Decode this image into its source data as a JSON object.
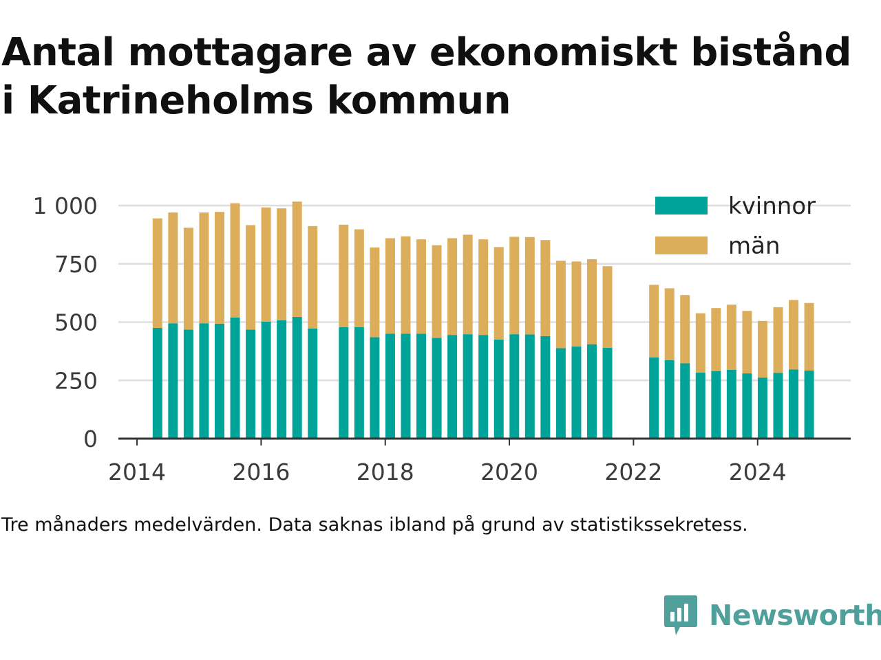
{
  "title": {
    "line1": "Antal mottagare av ekonomiskt bistånd",
    "line2": "i Katrineholms kommun"
  },
  "note": "Tre månaders medelvärden. Data saknas ibland på grund av statistikssekretess.",
  "brand": {
    "name": "Newsworthy",
    "icon": "chat-bar-chart-icon"
  },
  "colors": {
    "kvinnor": "#00a398",
    "man": "#dcae5b",
    "grid": "#dddddd",
    "axis": "#333333",
    "brand": "#4f9f9a"
  },
  "chart_data": {
    "type": "bar",
    "stacked": true,
    "title": "Antal mottagare av ekonomiskt bistånd i Katrineholms kommun",
    "xlabel": "",
    "ylabel": "",
    "xlim": [
      2013.7,
      2025.5
    ],
    "ylim": [
      0,
      1000
    ],
    "yticks": [
      0,
      250,
      500,
      750,
      1000
    ],
    "ytick_labels": [
      "0",
      "250",
      "500",
      "750",
      "1 000"
    ],
    "xticks": [
      2014,
      2016,
      2018,
      2020,
      2022,
      2024
    ],
    "xtick_labels": [
      "2014",
      "2016",
      "2018",
      "2020",
      "2022",
      "2024"
    ],
    "grid": true,
    "legend": "top-right",
    "x": [
      2014.33,
      2014.58,
      2014.83,
      2015.08,
      2015.33,
      2015.58,
      2015.83,
      2016.08,
      2016.33,
      2016.58,
      2016.83,
      2017.33,
      2017.58,
      2017.83,
      2018.08,
      2018.33,
      2018.58,
      2018.83,
      2019.08,
      2019.33,
      2019.58,
      2019.83,
      2020.08,
      2020.33,
      2020.58,
      2020.83,
      2021.08,
      2021.33,
      2021.58,
      2022.33,
      2022.58,
      2022.83,
      2023.08,
      2023.33,
      2023.58,
      2023.83,
      2024.08,
      2024.33,
      2024.58,
      2024.83
    ],
    "series": [
      {
        "name": "kvinnor",
        "values": [
          475,
          495,
          468,
          495,
          493,
          520,
          468,
          502,
          508,
          522,
          472,
          478,
          478,
          435,
          450,
          450,
          450,
          432,
          445,
          448,
          445,
          425,
          448,
          447,
          440,
          388,
          395,
          405,
          390,
          348,
          337,
          323,
          283,
          290,
          295,
          280,
          262,
          282,
          297,
          292
        ]
      },
      {
        "name": "män",
        "values": [
          470,
          475,
          437,
          475,
          480,
          490,
          448,
          490,
          480,
          495,
          440,
          440,
          420,
          385,
          410,
          418,
          405,
          398,
          415,
          427,
          410,
          397,
          418,
          418,
          412,
          375,
          365,
          365,
          350,
          312,
          308,
          293,
          255,
          270,
          280,
          268,
          243,
          282,
          298,
          290
        ]
      }
    ]
  }
}
